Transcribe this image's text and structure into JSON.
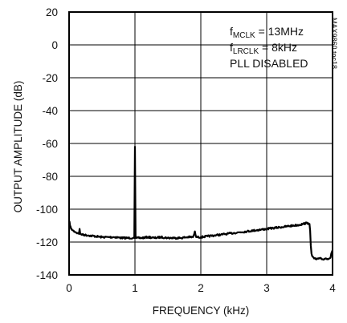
{
  "chart_data": {
    "type": "line",
    "title": "",
    "xlabel": "FREQUENCY (kHz)",
    "ylabel": "OUTPUT AMPLITUDE (dB)",
    "xlim": [
      0,
      4
    ],
    "ylim": [
      -140,
      20
    ],
    "xticks": [
      0,
      1,
      2,
      3,
      4
    ],
    "yticks": [
      20,
      0,
      -20,
      -40,
      -60,
      -80,
      -100,
      -120,
      -140
    ],
    "x_tick_labels": [
      "0",
      "1",
      "2",
      "3",
      "4"
    ],
    "y_tick_labels": [
      "20",
      "0",
      "-20",
      "-40",
      "-60",
      "-80",
      "-100",
      "-120",
      "-140"
    ],
    "grid": true,
    "annotations": {
      "line1_main": "f",
      "line1_sub": "MCLK",
      "line1_rest": " = 13MHz",
      "line2_main": "f",
      "line2_sub": "LRCLK",
      "line2_rest": " = 8kHz",
      "line3": "PLL DISABLED",
      "side_code": "MAX9860 toc18"
    },
    "series": [
      {
        "color": "#000000",
        "x": [
          0,
          0.03,
          0.06,
          0.1,
          0.13,
          0.15,
          0.16,
          0.17,
          0.2,
          0.3,
          0.4,
          0.5,
          0.6,
          0.7,
          0.8,
          0.9,
          0.97,
          0.99,
          1.0,
          1.01,
          1.03,
          1.1,
          1.2,
          1.3,
          1.4,
          1.5,
          1.6,
          1.7,
          1.8,
          1.88,
          1.9,
          1.91,
          1.92,
          1.93,
          1.95,
          2.0,
          2.1,
          2.2,
          2.3,
          2.4,
          2.5,
          2.6,
          2.7,
          2.8,
          2.9,
          3.0,
          3.1,
          3.2,
          3.3,
          3.4,
          3.5,
          3.55,
          3.6,
          3.63,
          3.65,
          3.66,
          3.67,
          3.68,
          3.7,
          3.72,
          3.75,
          3.8,
          3.85,
          3.9,
          3.95,
          3.97,
          3.98,
          3.99,
          4.0
        ],
        "y": [
          -107,
          -112,
          -113,
          -114,
          -114.5,
          -115,
          -112,
          -115,
          -115.5,
          -116,
          -116.5,
          -117,
          -117,
          -117,
          -117.5,
          -117.5,
          -117.5,
          -117.5,
          -62,
          -117.5,
          -117.5,
          -117.5,
          -117,
          -117.5,
          -117,
          -117.5,
          -117.5,
          -117.5,
          -117,
          -117,
          -115,
          -113.5,
          -115.5,
          -117,
          -117,
          -117,
          -116.5,
          -116,
          -115.5,
          -115,
          -114.5,
          -114,
          -113.5,
          -113,
          -112.5,
          -112,
          -111.5,
          -111,
          -110.5,
          -110,
          -109.5,
          -109,
          -108.5,
          -108.5,
          -109,
          -113,
          -122,
          -127,
          -129,
          -130,
          -130.5,
          -130,
          -130.5,
          -130,
          -130,
          -129.5,
          -127,
          -126,
          -125
        ]
      }
    ]
  }
}
